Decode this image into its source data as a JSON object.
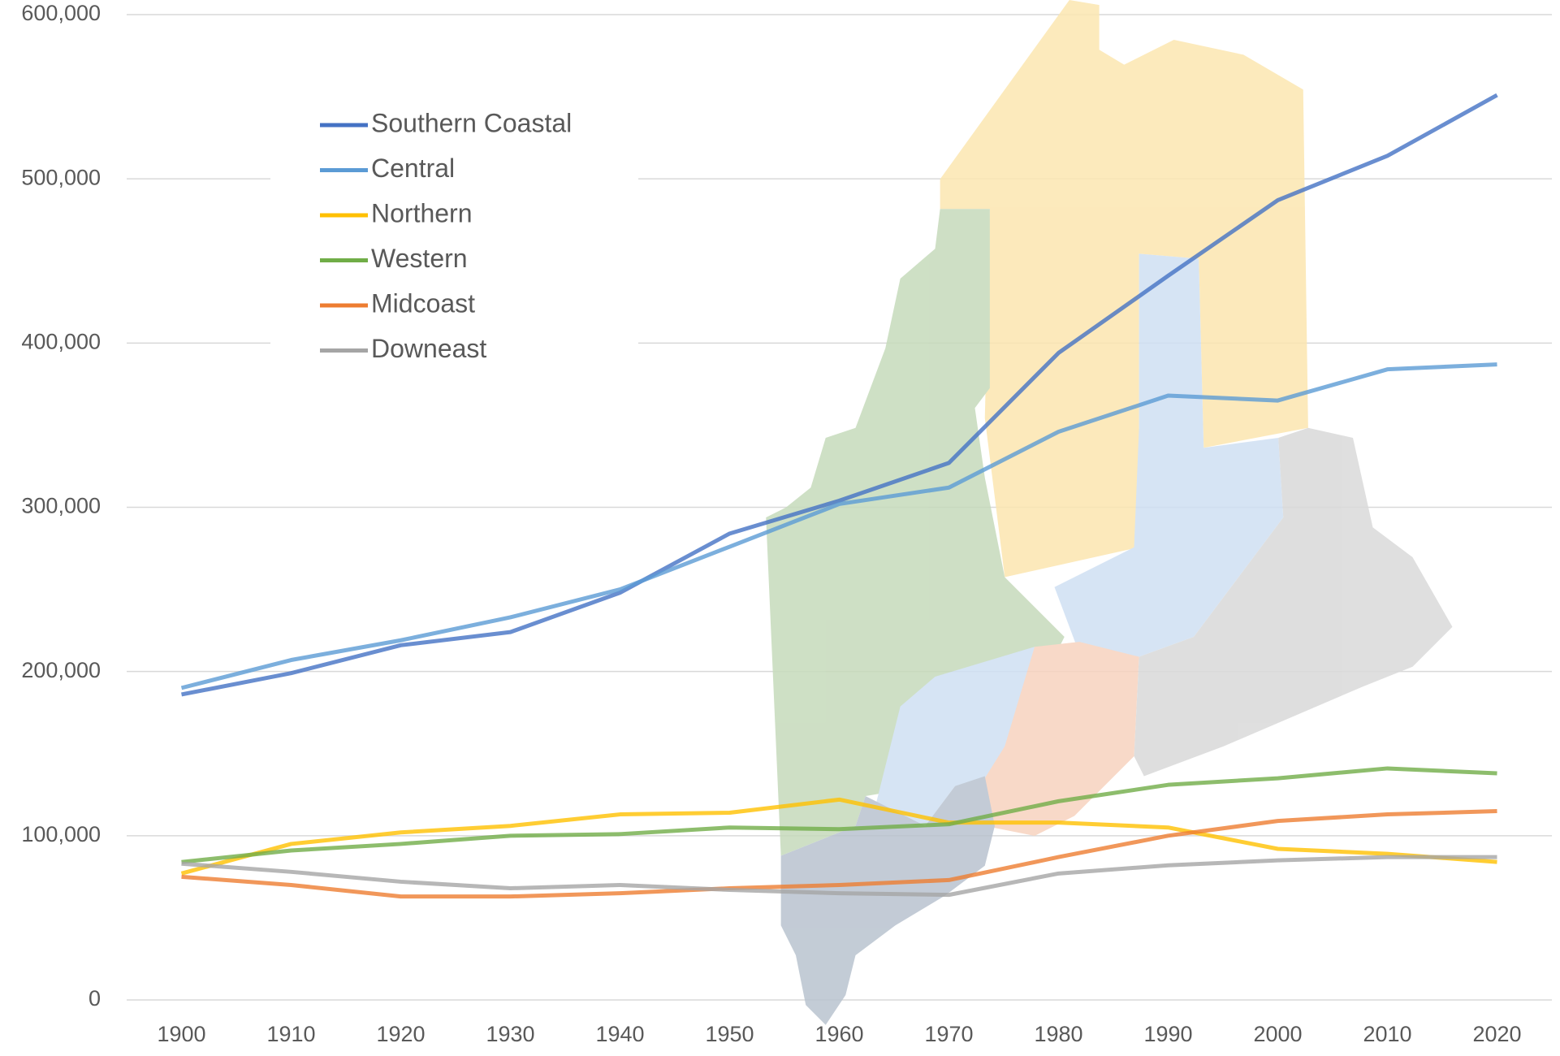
{
  "chart_data": {
    "type": "line",
    "categories": [
      "1900",
      "1910",
      "1920",
      "1930",
      "1940",
      "1950",
      "1960",
      "1970",
      "1980",
      "1990",
      "2000",
      "2010",
      "2020"
    ],
    "series": [
      {
        "name": "Southern Coastal",
        "color": "#4472c4",
        "values": [
          186000,
          199000,
          216000,
          224000,
          248000,
          284000,
          304000,
          327000,
          394000,
          441000,
          487000,
          514000,
          551000
        ]
      },
      {
        "name": "Central",
        "color": "#5b9bd5",
        "values": [
          190000,
          207000,
          219000,
          233000,
          250000,
          276000,
          302000,
          312000,
          346000,
          368000,
          365000,
          384000,
          387000
        ]
      },
      {
        "name": "Northern",
        "color": "#ffc000",
        "values": [
          77000,
          95000,
          102000,
          106000,
          113000,
          114000,
          122000,
          108000,
          108000,
          105000,
          92000,
          89000,
          84000
        ]
      },
      {
        "name": "Western",
        "color": "#70ad47",
        "values": [
          84000,
          91000,
          95000,
          100000,
          101000,
          105000,
          104000,
          107000,
          121000,
          131000,
          135000,
          141000,
          138000
        ]
      },
      {
        "name": "Midcoast",
        "color": "#ed7d31",
        "values": [
          75000,
          70000,
          63000,
          63000,
          65000,
          68000,
          70000,
          73000,
          87000,
          100000,
          109000,
          113000,
          115000
        ]
      },
      {
        "name": "Downeast",
        "color": "#a5a5a5",
        "values": [
          83000,
          78000,
          72000,
          68000,
          70000,
          67000,
          65000,
          64000,
          77000,
          82000,
          85000,
          87000,
          87000
        ]
      }
    ],
    "ylim": [
      0,
      600000
    ],
    "yticks": [
      0,
      {
        "value": 100000,
        "label": "100,000"
      },
      {
        "value": 200000,
        "label": "200,000"
      },
      {
        "value": 300000,
        "label": "300,000"
      },
      {
        "value": 400000,
        "label": "400,000"
      },
      {
        "value": 500000,
        "label": "500,000"
      },
      {
        "value": 600000,
        "label": "600,000"
      }
    ],
    "grid": true,
    "legend": "upper left"
  }
}
